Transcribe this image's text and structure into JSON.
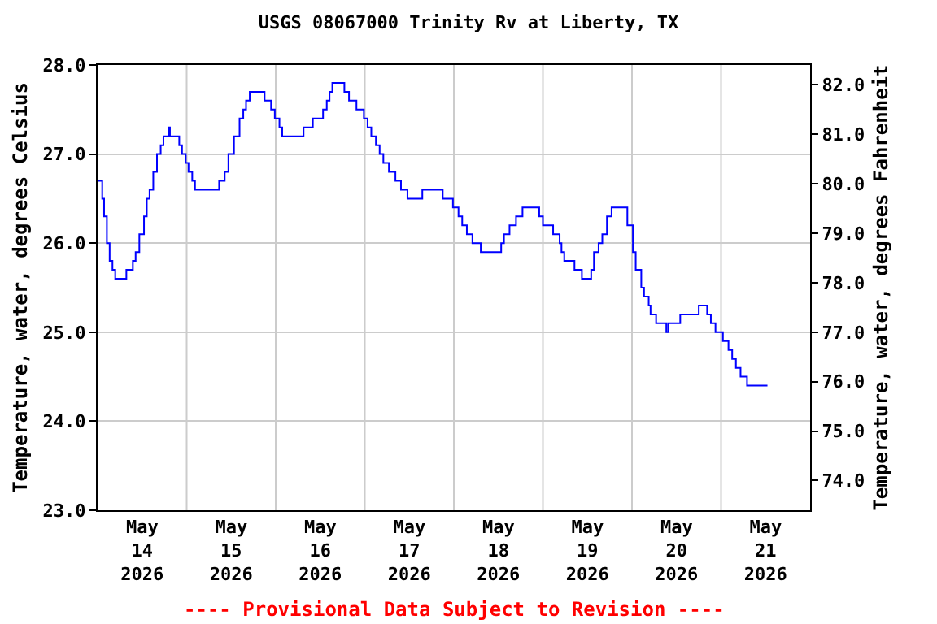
{
  "chart_data": {
    "type": "step",
    "title": "USGS 08067000 Trinity Rv at Liberty, TX",
    "ylabel": "Temperature, water, degrees Celsius",
    "y2label": "Temperature, water, degrees Fahrenheit",
    "annotations": [
      "---- Provisional Data Subject to Revision ----"
    ],
    "x": [
      "2026-05-14T00:00",
      "2026-05-14T01:15",
      "2026-05-14T01:45",
      "2026-05-14T02:30",
      "2026-05-14T03:15",
      "2026-05-14T04:00",
      "2026-05-14T04:45",
      "2026-05-14T07:45",
      "2026-05-14T09:30",
      "2026-05-14T10:15",
      "2026-05-14T11:15",
      "2026-05-14T12:30",
      "2026-05-14T13:15",
      "2026-05-14T14:00",
      "2026-05-14T15:00",
      "2026-05-14T16:00",
      "2026-05-14T17:00",
      "2026-05-14T17:45",
      "2026-05-14T19:15",
      "2026-05-14T19:30",
      "2026-05-14T22:00",
      "2026-05-14T22:45",
      "2026-05-14T23:45",
      "2026-05-15T00:30",
      "2026-05-15T01:30",
      "2026-05-15T02:15",
      "2026-05-15T08:45",
      "2026-05-15T10:15",
      "2026-05-15T11:15",
      "2026-05-15T12:45",
      "2026-05-15T14:15",
      "2026-05-15T15:15",
      "2026-05-15T16:00",
      "2026-05-15T17:00",
      "2026-05-15T21:00",
      "2026-05-15T22:45",
      "2026-05-15T23:45",
      "2026-05-16T01:00",
      "2026-05-16T01:45",
      "2026-05-16T07:30",
      "2026-05-16T10:00",
      "2026-05-16T12:45",
      "2026-05-16T13:45",
      "2026-05-16T14:30",
      "2026-05-16T15:15",
      "2026-05-16T18:30",
      "2026-05-16T19:45",
      "2026-05-16T21:45",
      "2026-05-16T23:45",
      "2026-05-17T00:45",
      "2026-05-17T01:45",
      "2026-05-17T03:00",
      "2026-05-17T04:00",
      "2026-05-17T05:00",
      "2026-05-17T06:30",
      "2026-05-17T08:15",
      "2026-05-17T09:45",
      "2026-05-17T11:30",
      "2026-05-17T15:30",
      "2026-05-17T21:00",
      "2026-05-17T23:45",
      "2026-05-18T01:15",
      "2026-05-18T02:15",
      "2026-05-18T03:30",
      "2026-05-18T05:00",
      "2026-05-18T07:15",
      "2026-05-18T12:45",
      "2026-05-18T13:30",
      "2026-05-18T15:00",
      "2026-05-18T16:45",
      "2026-05-18T18:30",
      "2026-05-18T23:00",
      "2026-05-19T00:00",
      "2026-05-19T02:45",
      "2026-05-19T04:30",
      "2026-05-19T05:00",
      "2026-05-19T05:45",
      "2026-05-19T08:30",
      "2026-05-19T10:30",
      "2026-05-19T13:00",
      "2026-05-19T13:45",
      "2026-05-19T15:00",
      "2026-05-19T16:00",
      "2026-05-19T17:15",
      "2026-05-19T18:30",
      "2026-05-19T22:45",
      "2026-05-20T00:15",
      "2026-05-20T01:00",
      "2026-05-20T02:30",
      "2026-05-20T03:15",
      "2026-05-20T04:30",
      "2026-05-20T05:00",
      "2026-05-20T06:30",
      "2026-05-20T09:15",
      "2026-05-20T09:45",
      "2026-05-20T13:00",
      "2026-05-20T18:00",
      "2026-05-20T20:15",
      "2026-05-20T21:15",
      "2026-05-20T22:30",
      "2026-05-21T00:30",
      "2026-05-21T02:00",
      "2026-05-21T03:00",
      "2026-05-21T04:00",
      "2026-05-21T05:15",
      "2026-05-21T07:00",
      "2026-05-21T12:30"
    ],
    "series": [
      {
        "color": "#0000ff",
        "values": [
          26.7,
          26.5,
          26.3,
          26.0,
          25.8,
          25.7,
          25.6,
          25.7,
          25.8,
          25.9,
          26.1,
          26.3,
          26.5,
          26.6,
          26.8,
          27.0,
          27.1,
          27.2,
          27.3,
          27.2,
          27.1,
          27.0,
          26.9,
          26.8,
          26.7,
          26.6,
          26.7,
          26.8,
          27.0,
          27.2,
          27.4,
          27.5,
          27.6,
          27.7,
          27.6,
          27.5,
          27.4,
          27.3,
          27.2,
          27.3,
          27.4,
          27.5,
          27.6,
          27.7,
          27.8,
          27.7,
          27.6,
          27.5,
          27.4,
          27.3,
          27.2,
          27.1,
          27.0,
          26.9,
          26.8,
          26.7,
          26.6,
          26.5,
          26.6,
          26.5,
          26.4,
          26.3,
          26.2,
          26.1,
          26.0,
          25.9,
          26.0,
          26.1,
          26.2,
          26.3,
          26.4,
          26.3,
          26.2,
          26.1,
          26.0,
          25.9,
          25.8,
          25.7,
          25.6,
          25.7,
          25.9,
          26.0,
          26.1,
          26.3,
          26.4,
          26.2,
          25.9,
          25.7,
          25.5,
          25.4,
          25.3,
          25.2,
          25.1,
          25.0,
          25.1,
          25.2,
          25.3,
          25.2,
          25.1,
          25.0,
          24.9,
          24.8,
          24.7,
          24.6,
          24.5,
          24.4,
          24.4
        ]
      }
    ],
    "xlim": [
      "2026-05-14T00:00",
      "2026-05-22T00:00"
    ],
    "xticks": [
      {
        "value": "2026-05-14T12:00",
        "label": "May\n14\n2026"
      },
      {
        "value": "2026-05-15T12:00",
        "label": "May\n15\n2026"
      },
      {
        "value": "2026-05-16T12:00",
        "label": "May\n16\n2026"
      },
      {
        "value": "2026-05-17T12:00",
        "label": "May\n17\n2026"
      },
      {
        "value": "2026-05-18T12:00",
        "label": "May\n18\n2026"
      },
      {
        "value": "2026-05-19T12:00",
        "label": "May\n19\n2026"
      },
      {
        "value": "2026-05-20T12:00",
        "label": "May\n20\n2026"
      },
      {
        "value": "2026-05-21T12:00",
        "label": "May\n21\n2026"
      },
      {
        "value": "2026-05-15T00:00",
        "label": null
      },
      {
        "value": "2026-05-16T00:00",
        "label": null
      },
      {
        "value": "2026-05-17T00:00",
        "label": null
      },
      {
        "value": "2026-05-18T00:00",
        "label": null
      },
      {
        "value": "2026-05-19T00:00",
        "label": null
      },
      {
        "value": "2026-05-20T00:00",
        "label": null
      },
      {
        "value": "2026-05-21T00:00",
        "label": null
      }
    ],
    "ylim": [
      23.0,
      28.0
    ],
    "yticks": [
      {
        "value": 23,
        "label": "23.0"
      },
      {
        "value": 24,
        "label": "24.0"
      },
      {
        "value": 25,
        "label": "25.0"
      },
      {
        "value": 26,
        "label": "26.0"
      },
      {
        "value": 27,
        "label": "27.0"
      },
      {
        "value": 28,
        "label": "28.0"
      }
    ],
    "y2lim": [
      73.4,
      82.4
    ],
    "y2ticks": [
      {
        "value": 74,
        "label": "74.0"
      },
      {
        "value": 75,
        "label": "75.0"
      },
      {
        "value": 76,
        "label": "76.0"
      },
      {
        "value": 77,
        "label": "77.0"
      },
      {
        "value": 78,
        "label": "78.0"
      },
      {
        "value": 79,
        "label": "79.0"
      },
      {
        "value": 80,
        "label": "80.0"
      },
      {
        "value": 81,
        "label": "81.0"
      },
      {
        "value": 82,
        "label": "82.0"
      }
    ],
    "grid": true,
    "line_style": "solid"
  }
}
